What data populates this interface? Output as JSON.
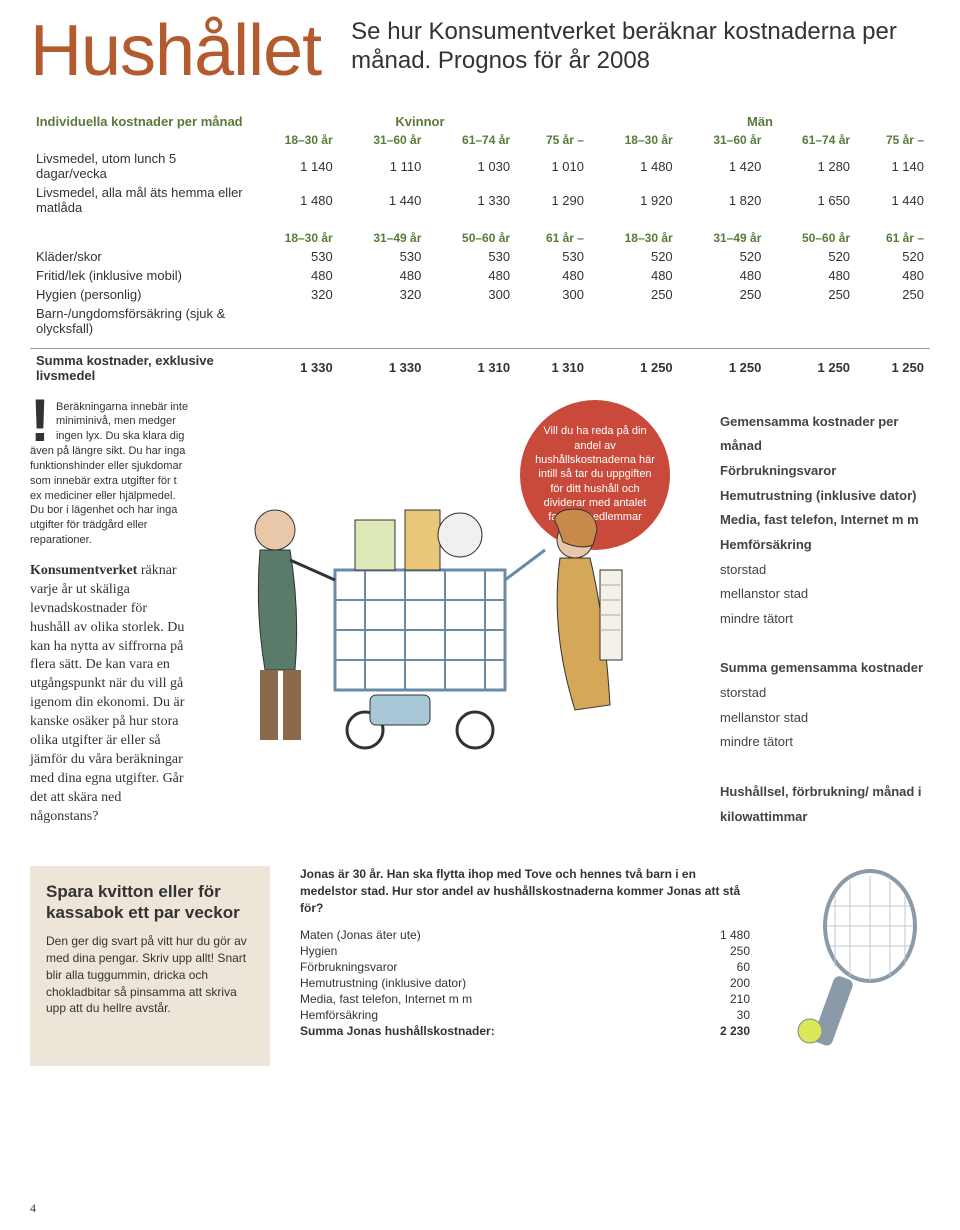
{
  "header": {
    "title": "Hushållet",
    "subtitle": "Se hur Konsumentverket beräknar kostnaderna per månad. Prognos för år 2008"
  },
  "colors": {
    "title": "#b35a2e",
    "table_header": "#5a7a3a",
    "bubble": "#c94a3b",
    "tip_bg": "#ede5d8"
  },
  "table1": {
    "section": "Individuella kostnader per månad",
    "group_left": "Kvinnor",
    "group_right": "Män",
    "cols": [
      "18–30 år",
      "31–60 år",
      "61–74 år",
      "75 år –",
      "18–30 år",
      "31–60 år",
      "61–74 år",
      "75 år –"
    ],
    "rows": [
      {
        "label": "Livsmedel, utom lunch 5 dagar/vecka",
        "v": [
          "1 140",
          "1 110",
          "1 030",
          "1 010",
          "1 480",
          "1 420",
          "1 280",
          "1 140"
        ]
      },
      {
        "label": "Livsmedel, alla mål äts hemma eller matlåda",
        "v": [
          "1 480",
          "1 440",
          "1 330",
          "1 290",
          "1 920",
          "1 820",
          "1 650",
          "1 440"
        ]
      }
    ]
  },
  "table2": {
    "cols": [
      "18–30 år",
      "31–49 år",
      "50–60 år",
      "61 år –",
      "18–30 år",
      "31–49 år",
      "50–60 år",
      "61 år –"
    ],
    "rows": [
      {
        "label": "Kläder/skor",
        "v": [
          "530",
          "530",
          "530",
          "530",
          "520",
          "520",
          "520",
          "520"
        ]
      },
      {
        "label": "Fritid/lek (inklusive mobil)",
        "v": [
          "480",
          "480",
          "480",
          "480",
          "480",
          "480",
          "480",
          "480"
        ]
      },
      {
        "label": "Hygien (personlig)",
        "v": [
          "320",
          "320",
          "300",
          "300",
          "250",
          "250",
          "250",
          "250"
        ]
      },
      {
        "label": "Barn-/ungdomsförsäkring (sjuk & olycksfall)",
        "v": [
          "",
          "",
          "",
          "",
          "",
          "",
          "",
          ""
        ]
      }
    ],
    "sum": {
      "label": "Summa kostnader, exklusive livsmedel",
      "v": [
        "1 330",
        "1 330",
        "1 310",
        "1 310",
        "1 250",
        "1 250",
        "1 250",
        "1 250"
      ]
    }
  },
  "note": "Beräkningarna innebär inte miniminivå, men medger ingen lyx. Du ska klara dig även på längre sikt. Du har inga funktionshinder eller sjukdomar som innebär extra utgifter för t ex mediciner eller hjälpmedel. Du bor i lägenhet och har inga utgifter för trädgård eller reparationer.",
  "body": "Konsumentverket räknar varje år ut skäliga levnadskostnader för hushåll av olika storlek. Du kan ha nytta av siffrorna på flera sätt. De kan vara en utgångspunkt när du vill gå igenom din ekonomi. Du är kanske osäker på hur stora olika utgifter är eller så jämför du våra beräkningar med dina egna utgifter. Går det att skära ned någonstans?",
  "bubble": "Vill du ha reda på din andel av hushållskostnaderna här intill så tar du uppgiften för ditt hushåll och dividerar med antalet familje-medlemmar",
  "right_list": {
    "title": "Gemensamma kostnader per månad",
    "items": [
      "Förbrukningsvaror",
      "Hemutrustning (inklusive dator)",
      "Media, fast telefon, Internet m m",
      "Hemförsäkring",
      "storstad",
      "mellanstor stad",
      "mindre tätort",
      "",
      "Summa gemensamma kostnader",
      "storstad",
      "mellanstor stad",
      "mindre tätort",
      "",
      "Hushållsel, förbrukning/ månad i kilowattimmar"
    ]
  },
  "tip": {
    "title": "Spara kvitton eller för kassabok ett par veckor",
    "body": "Den ger dig svart på vitt hur du gör av med dina pengar. Skriv upp allt! Snart blir alla tuggummin, dricka och chokladbitar så pinsamma att skriva upp att du hellre avstår."
  },
  "example": {
    "intro": "Jonas är 30 år. Han ska flytta ihop med Tove och hennes två barn i en medelstor stad. Hur stor andel av hushållskostnaderna kommer Jonas att stå för?",
    "rows": [
      {
        "label": "Maten (Jonas äter ute)",
        "v": "1 480"
      },
      {
        "label": "Hygien",
        "v": "250"
      },
      {
        "label": "Förbrukningsvaror",
        "v": "60"
      },
      {
        "label": "Hemutrustning (inklusive dator)",
        "v": "200"
      },
      {
        "label": "Media, fast telefon, Internet m m",
        "v": "210"
      },
      {
        "label": "Hemförsäkring",
        "v": "30"
      }
    ],
    "sum": {
      "label": "Summa Jonas hushållskostnader:",
      "v": "2 230"
    }
  },
  "page": "4"
}
